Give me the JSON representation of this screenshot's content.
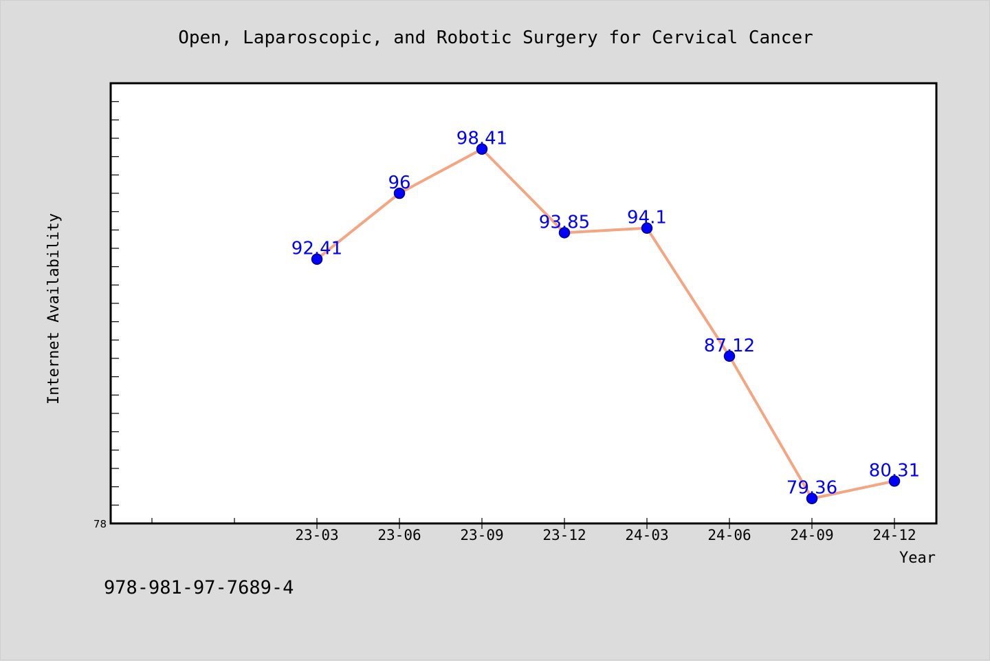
{
  "chart_data": {
    "type": "line",
    "title": "Open, Laparoscopic, and Robotic Surgery for Cervical Cancer",
    "xlabel": "Year",
    "ylabel": "Internet Availability",
    "categories": [
      "23-03",
      "23-06",
      "23-09",
      "23-12",
      "24-03",
      "24-06",
      "24-09",
      "24-12"
    ],
    "series": [
      {
        "values": [
          92.41,
          96,
          98.41,
          93.85,
          94.1,
          87.12,
          79.36,
          80.31
        ],
        "labels": [
          "92.41",
          "96",
          "98.41",
          "93.85",
          "94.1",
          "87.12",
          "79.36",
          "80.31"
        ],
        "line_color": "#f4a582",
        "marker_color": "#0000ff"
      }
    ],
    "ylim": [
      78,
      102
    ],
    "yticks_labeled": [
      "78"
    ],
    "grid": false,
    "legend": "none"
  },
  "footer": {
    "isbn": "978-981-97-7689-4"
  }
}
